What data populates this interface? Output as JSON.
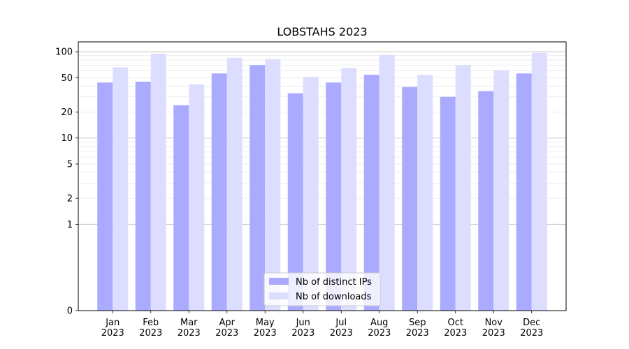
{
  "chart_data": {
    "type": "bar",
    "title": "LOBSTAHS 2023",
    "yscale": "symlog",
    "ylim": [
      0,
      130
    ],
    "y_ticks": [
      0,
      1,
      2,
      5,
      10,
      20,
      50,
      100
    ],
    "y_tick_labels": [
      "0",
      "1",
      "2",
      "5",
      "10",
      "20",
      "50",
      "100"
    ],
    "grid": true,
    "categories": [
      "Jan\n2023",
      "Feb\n2023",
      "Mar\n2023",
      "Apr\n2023",
      "May\n2023",
      "Jun\n2023",
      "Jul\n2023",
      "Aug\n2023",
      "Sep\n2023",
      "Oct\n2023",
      "Nov\n2023",
      "Dec\n2023"
    ],
    "series": [
      {
        "name": "Nb of distinct IPs",
        "color": "#aaaaff",
        "values": [
          44,
          45,
          24,
          56,
          70,
          33,
          44,
          54,
          39,
          30,
          35,
          56
        ]
      },
      {
        "name": "Nb of downloads",
        "color": "#ddddff",
        "values": [
          66,
          95,
          42,
          85,
          82,
          51,
          65,
          92,
          54,
          70,
          61,
          97
        ]
      }
    ],
    "legend_position": "bottom-center"
  }
}
